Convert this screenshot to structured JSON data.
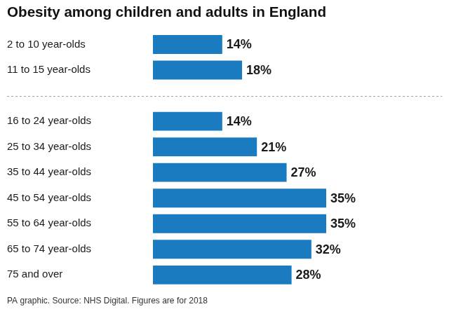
{
  "chart_data": {
    "type": "bar",
    "orientation": "horizontal",
    "title": "Obesity among children and adults in England",
    "categories": [
      "2 to 10 year-olds",
      "11 to 15 year-olds",
      null,
      "16 to 24 year-olds",
      "25 to 34 year-olds",
      "35 to 44 year-olds",
      "45 to 54 year-olds",
      "55 to 64 year-olds",
      "65 to 74 year-olds",
      "75 and over"
    ],
    "values": [
      14,
      18,
      null,
      14,
      21,
      27,
      35,
      35,
      32,
      28
    ],
    "value_labels": [
      "14%",
      "18%",
      null,
      "14%",
      "21%",
      "27%",
      "35%",
      "35%",
      "32%",
      "28%"
    ],
    "color": "#1b7bc0",
    "data_labels": true,
    "tick_labels": "y",
    "grid": false,
    "annotations": [
      "PA graphic. Source: NHS Digital. Figures are for 2018"
    ]
  }
}
